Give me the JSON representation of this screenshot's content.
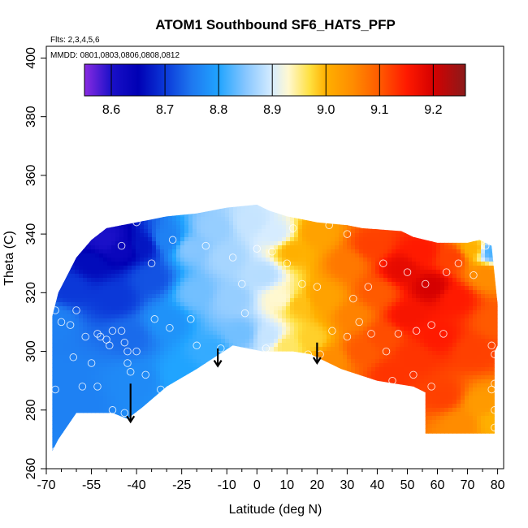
{
  "chart_data": {
    "type": "heatmap",
    "title": "ATOM1 Southbound SF6_HATS_PFP",
    "notes": [
      "Flts: 2,3,4,5,6",
      "MMDD: 0801,0803,0806,0808,0812"
    ],
    "xlabel": "Latitude (deg N)",
    "ylabel": "Theta (C)",
    "xlim": [
      -70,
      82
    ],
    "ylim": [
      260,
      404
    ],
    "xticks": [
      -70,
      -55,
      -40,
      -25,
      -10,
      0,
      10,
      20,
      30,
      40,
      50,
      60,
      70,
      80
    ],
    "xtick_labels": [
      "-70",
      "-55",
      "-40",
      "-25",
      "-10",
      "0",
      "10",
      "20",
      "30",
      "40",
      "50",
      "60",
      "70",
      "80"
    ],
    "xminor_ticks": [
      -65,
      -60,
      -50,
      -45,
      -35,
      -30,
      -20,
      -15,
      -5,
      5,
      15,
      25,
      35,
      45,
      55,
      65,
      75
    ],
    "yticks": [
      260,
      280,
      300,
      320,
      340,
      360,
      380,
      400
    ],
    "ytick_labels": [
      "260",
      "280",
      "300",
      "320",
      "340",
      "360",
      "380",
      "400"
    ],
    "colorbar": {
      "range": [
        8.55,
        9.26
      ],
      "ticks": [
        8.6,
        8.7,
        8.8,
        8.9,
        9.0,
        9.1,
        9.2
      ],
      "tick_labels": [
        "8.6",
        "8.7",
        "8.8",
        "8.9",
        "9.0",
        "9.1",
        "9.2"
      ],
      "stops": [
        [
          8.55,
          "#8a2be2"
        ],
        [
          8.6,
          "#1a10c8"
        ],
        [
          8.65,
          "#0000b4"
        ],
        [
          8.7,
          "#0b38d8"
        ],
        [
          8.75,
          "#1e78f0"
        ],
        [
          8.8,
          "#20a4ff"
        ],
        [
          8.85,
          "#86c6ff"
        ],
        [
          8.9,
          "#d6ecff"
        ],
        [
          8.93,
          "#fff8d0"
        ],
        [
          8.97,
          "#ffe040"
        ],
        [
          9.0,
          "#ffb000"
        ],
        [
          9.05,
          "#ff8c00"
        ],
        [
          9.1,
          "#ff5a00"
        ],
        [
          9.15,
          "#ff1a00"
        ],
        [
          9.2,
          "#d50000"
        ],
        [
          9.26,
          "#8b1a1a"
        ]
      ]
    },
    "field_boundary": [
      [
        -68,
        266
      ],
      [
        -66,
        270
      ],
      [
        -60,
        279
      ],
      [
        -48,
        279
      ],
      [
        -43,
        277
      ],
      [
        -38,
        281
      ],
      [
        -30,
        288
      ],
      [
        -20,
        294
      ],
      [
        -8,
        302
      ],
      [
        2,
        300
      ],
      [
        12,
        300
      ],
      [
        18,
        299
      ],
      [
        28,
        294
      ],
      [
        40,
        290
      ],
      [
        52,
        288
      ],
      [
        56,
        286
      ],
      [
        56,
        272
      ],
      [
        79,
        272
      ],
      [
        79,
        300
      ],
      [
        80,
        302
      ],
      [
        80,
        316
      ],
      [
        79,
        326
      ],
      [
        78,
        336
      ],
      [
        74,
        338
      ],
      [
        70,
        337
      ],
      [
        60,
        337
      ],
      [
        52,
        339
      ],
      [
        48,
        341
      ],
      [
        35,
        342
      ],
      [
        30,
        343
      ],
      [
        20,
        344
      ],
      [
        10,
        346
      ],
      [
        4,
        348
      ],
      [
        0,
        350
      ],
      [
        -10,
        349
      ],
      [
        -20,
        347
      ],
      [
        -30,
        346
      ],
      [
        -35,
        345
      ],
      [
        -40,
        344
      ],
      [
        -50,
        342
      ],
      [
        -55,
        338
      ],
      [
        -60,
        332
      ],
      [
        -63,
        326
      ],
      [
        -66,
        320
      ],
      [
        -68,
        312
      ]
    ],
    "field_control_points": [
      [
        -68,
        310,
        8.76
      ],
      [
        -66,
        290,
        8.76
      ],
      [
        -60,
        282,
        8.76
      ],
      [
        -62,
        322,
        8.7
      ],
      [
        -55,
        330,
        8.66
      ],
      [
        -50,
        338,
        8.6
      ],
      [
        -45,
        335,
        8.63
      ],
      [
        -38,
        336,
        8.67
      ],
      [
        -47,
        318,
        8.7
      ],
      [
        -42,
        305,
        8.74
      ],
      [
        -40,
        290,
        8.77
      ],
      [
        -35,
        325,
        8.72
      ],
      [
        -30,
        338,
        8.76
      ],
      [
        -30,
        310,
        8.78
      ],
      [
        -25,
        292,
        8.8
      ],
      [
        -22,
        335,
        8.85
      ],
      [
        -20,
        320,
        8.84
      ],
      [
        -15,
        300,
        8.81
      ],
      [
        -14,
        342,
        8.86
      ],
      [
        -10,
        332,
        8.87
      ],
      [
        -8,
        318,
        8.86
      ],
      [
        -5,
        306,
        8.84
      ],
      [
        -2,
        344,
        8.89
      ],
      [
        2,
        326,
        8.88
      ],
      [
        4,
        305,
        8.89
      ],
      [
        6,
        340,
        8.9
      ],
      [
        8,
        318,
        8.93
      ],
      [
        10,
        302,
        8.96
      ],
      [
        12,
        334,
        9.0
      ],
      [
        14,
        316,
        8.99
      ],
      [
        18,
        304,
        8.98
      ],
      [
        20,
        340,
        9.02
      ],
      [
        22,
        318,
        9.02
      ],
      [
        25,
        297,
        9.05
      ],
      [
        30,
        330,
        9.07
      ],
      [
        32,
        312,
        9.06
      ],
      [
        35,
        300,
        9.1
      ],
      [
        38,
        336,
        9.12
      ],
      [
        40,
        320,
        9.1
      ],
      [
        42,
        305,
        9.11
      ],
      [
        45,
        292,
        9.13
      ],
      [
        48,
        328,
        9.18
      ],
      [
        50,
        312,
        9.16
      ],
      [
        52,
        298,
        9.13
      ],
      [
        55,
        334,
        9.15
      ],
      [
        58,
        322,
        9.2
      ],
      [
        60,
        305,
        9.15
      ],
      [
        62,
        285,
        9.12
      ],
      [
        65,
        332,
        9.12
      ],
      [
        66,
        318,
        9.15
      ],
      [
        68,
        275,
        9.05
      ],
      [
        72,
        335,
        9.0
      ],
      [
        72,
        300,
        9.12
      ],
      [
        75,
        282,
        9.03
      ],
      [
        76,
        326,
        9.05
      ],
      [
        78,
        334,
        8.82
      ],
      [
        79,
        310,
        9.1
      ],
      [
        79,
        276,
        9.0
      ]
    ],
    "samples": [
      [
        -67,
        314
      ],
      [
        -65,
        310
      ],
      [
        -62,
        309
      ],
      [
        -67,
        287
      ],
      [
        -67,
        266
      ],
      [
        -57,
        305
      ],
      [
        -53,
        306
      ],
      [
        -52,
        305
      ],
      [
        -50,
        304
      ],
      [
        -48,
        307
      ],
      [
        -49,
        302
      ],
      [
        -45,
        307
      ],
      [
        -44,
        303
      ],
      [
        -43,
        300
      ],
      [
        -43,
        296
      ],
      [
        -42,
        293
      ],
      [
        -40,
        300
      ],
      [
        -37,
        292
      ],
      [
        -53,
        288
      ],
      [
        -58,
        288
      ],
      [
        -55,
        277
      ],
      [
        -48,
        280
      ],
      [
        -44,
        279
      ],
      [
        -32,
        287
      ],
      [
        -34,
        311
      ],
      [
        -29,
        308
      ],
      [
        -22,
        311
      ],
      [
        -17,
        336
      ],
      [
        -12,
        301
      ],
      [
        -2,
        299
      ],
      [
        -4,
        313
      ],
      [
        0,
        335
      ],
      [
        3,
        301
      ],
      [
        5,
        298
      ],
      [
        12,
        298
      ],
      [
        17,
        299
      ],
      [
        21,
        299
      ],
      [
        -35,
        330
      ],
      [
        -45,
        336
      ],
      [
        -20,
        302
      ],
      [
        25,
        307
      ],
      [
        30,
        305
      ],
      [
        34,
        310
      ],
      [
        38,
        306
      ],
      [
        43,
        300
      ],
      [
        47,
        306
      ],
      [
        53,
        307
      ],
      [
        58,
        309
      ],
      [
        62,
        306
      ],
      [
        67,
        330
      ],
      [
        72,
        326
      ],
      [
        76,
        336
      ],
      [
        78,
        302
      ],
      [
        79,
        299
      ],
      [
        79,
        289
      ],
      [
        78,
        287
      ],
      [
        79,
        280
      ],
      [
        79,
        274
      ],
      [
        45,
        290
      ],
      [
        52,
        292
      ],
      [
        58,
        288
      ],
      [
        42,
        330
      ],
      [
        50,
        327
      ],
      [
        56,
        323
      ],
      [
        63,
        327
      ],
      [
        30,
        340
      ],
      [
        24,
        343
      ],
      [
        12,
        342
      ],
      [
        10,
        330
      ],
      [
        20,
        322
      ],
      [
        15,
        323
      ],
      [
        32,
        318
      ],
      [
        37,
        322
      ],
      [
        -28,
        338
      ],
      [
        -8,
        332
      ],
      [
        5,
        334
      ],
      [
        -5,
        323
      ],
      [
        -40,
        344
      ],
      [
        -60,
        314
      ],
      [
        -61,
        298
      ],
      [
        -55,
        296
      ]
    ],
    "arrows": [
      {
        "x": -42,
        "y_from": 289,
        "y_to": 276
      },
      {
        "x": -13,
        "y_from": 301,
        "y_to": 295
      },
      {
        "x": 20,
        "y_from": 303,
        "y_to": 296
      }
    ]
  }
}
